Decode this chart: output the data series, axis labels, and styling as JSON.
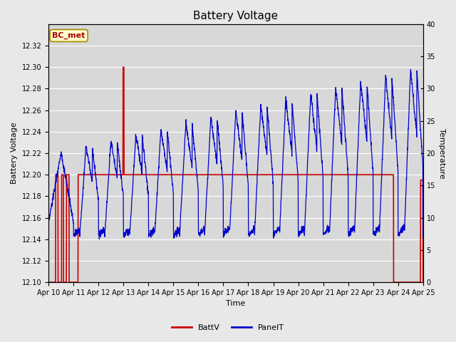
{
  "title": "Battery Voltage",
  "xlabel": "Time",
  "ylabel_left": "Battery Voltage",
  "ylabel_right": "Temperature",
  "annotation": "BC_met",
  "ylim_left": [
    12.1,
    12.34
  ],
  "ylim_right": [
    0,
    40
  ],
  "yticks_left": [
    12.1,
    12.12,
    12.14,
    12.16,
    12.18,
    12.2,
    12.22,
    12.24,
    12.26,
    12.28,
    12.3,
    12.32
  ],
  "yticks_right": [
    0,
    5,
    10,
    15,
    20,
    25,
    30,
    35,
    40
  ],
  "xtick_labels": [
    "Apr 10",
    "Apr 11",
    "Apr 12",
    "Apr 13",
    "Apr 14",
    "Apr 15",
    "Apr 16",
    "Apr 17",
    "Apr 18",
    "Apr 19",
    "Apr 20",
    "Apr 21",
    "Apr 22",
    "Apr 23",
    "Apr 24",
    "Apr 25"
  ],
  "color_battv": "#cc0000",
  "color_panelt": "#0000cc",
  "legend_battv": "BattV",
  "legend_panelt": "PanelT",
  "background_color": "#e8e8e8",
  "plot_bg_color": "#d8d8d8",
  "grid_color": "#ffffff",
  "title_fontsize": 11,
  "label_fontsize": 8,
  "tick_fontsize": 7,
  "annotation_fontsize": 8,
  "annotation_color": "#aa0000",
  "annotation_bg": "#ffffcc",
  "annotation_edge": "#aa8800"
}
